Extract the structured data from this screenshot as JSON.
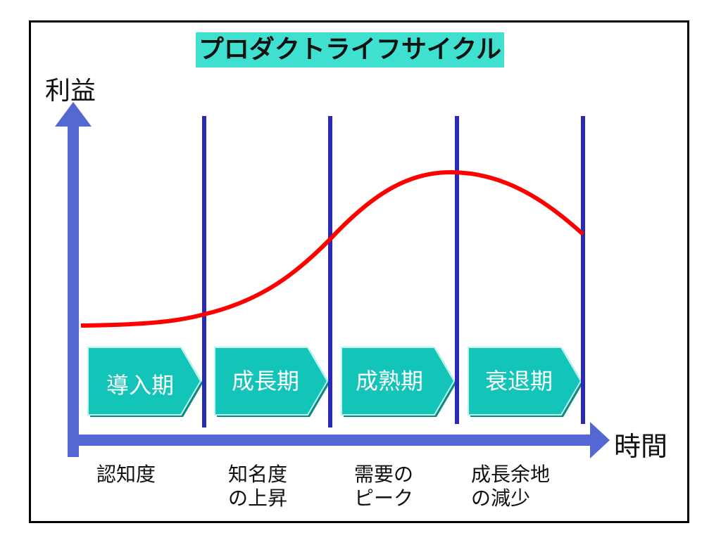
{
  "title": "プロダクトライフサイクル",
  "y_axis_label": "利益",
  "x_axis_label": "時間",
  "phases": [
    {
      "label": "導入期",
      "caption_line1": "認知度",
      "caption_line2": ""
    },
    {
      "label": "成長期",
      "caption_line1": "知名度",
      "caption_line2": "の上昇"
    },
    {
      "label": "成熟期",
      "caption_line1": "需要の",
      "caption_line2": "ピーク"
    },
    {
      "label": "衰退期",
      "caption_line1": "成長余地",
      "caption_line2": "の減少"
    }
  ],
  "colors": {
    "title_bg": "#40e0d0",
    "axis": "#5468d4",
    "divider": "#2a2ab8",
    "curve": "#ff0000",
    "phase_fill": "#13c4b8"
  }
}
